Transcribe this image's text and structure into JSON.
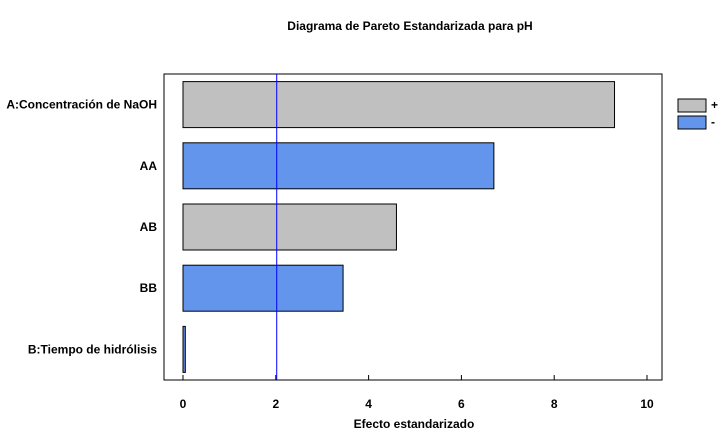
{
  "chart_data": {
    "type": "bar",
    "orientation": "horizontal",
    "title": "Diagrama de Pareto Estandarizada para pH",
    "xlabel": "Efecto estandarizado",
    "ylabel": "",
    "xlim": [
      0,
      10.4
    ],
    "xticks": [
      0,
      2,
      4,
      6,
      8,
      10
    ],
    "categories": [
      "A:Concentración de NaOH",
      "AA",
      "AB",
      "BB",
      "B:Tiempo de hidrólisis"
    ],
    "values": [
      9.3,
      6.7,
      4.6,
      3.45,
      0.05
    ],
    "signs": [
      "+",
      "-",
      "+",
      "-",
      "-"
    ],
    "reference_line": 2.02,
    "grid": false,
    "legend": {
      "placement": "top-right",
      "entries": [
        {
          "label": "+",
          "color": "#c0c0c0"
        },
        {
          "label": "-",
          "color": "#6495ed"
        }
      ]
    },
    "colors": {
      "positive": "#c0c0c0",
      "negative": "#6495ed",
      "reference": "#0000ff"
    }
  }
}
